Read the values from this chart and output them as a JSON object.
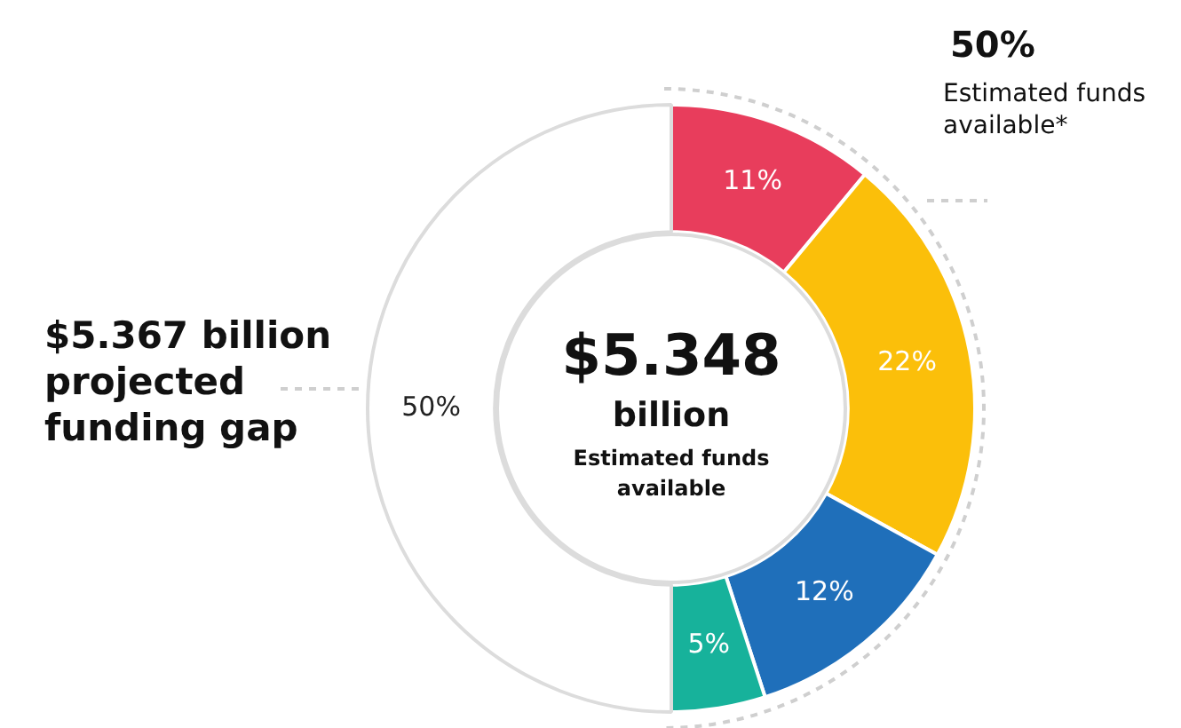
{
  "chart_data": {
    "type": "donut",
    "categories": [
      null,
      null,
      null,
      null,
      null
    ],
    "values": [
      11,
      22,
      12,
      5,
      50
    ],
    "colors": [
      "#e83d5c",
      "#fbbf0a",
      "#1f6fba",
      "#17b29b",
      "#ffffff"
    ],
    "value_labels": [
      "11%",
      "22%",
      "12%",
      "5%",
      "50%"
    ],
    "annotations": [
      "50%",
      "Estimated funds available*",
      "$5.367 billion projected funding gap",
      "$5.348",
      "billion",
      "Estimated funds available"
    ]
  }
}
